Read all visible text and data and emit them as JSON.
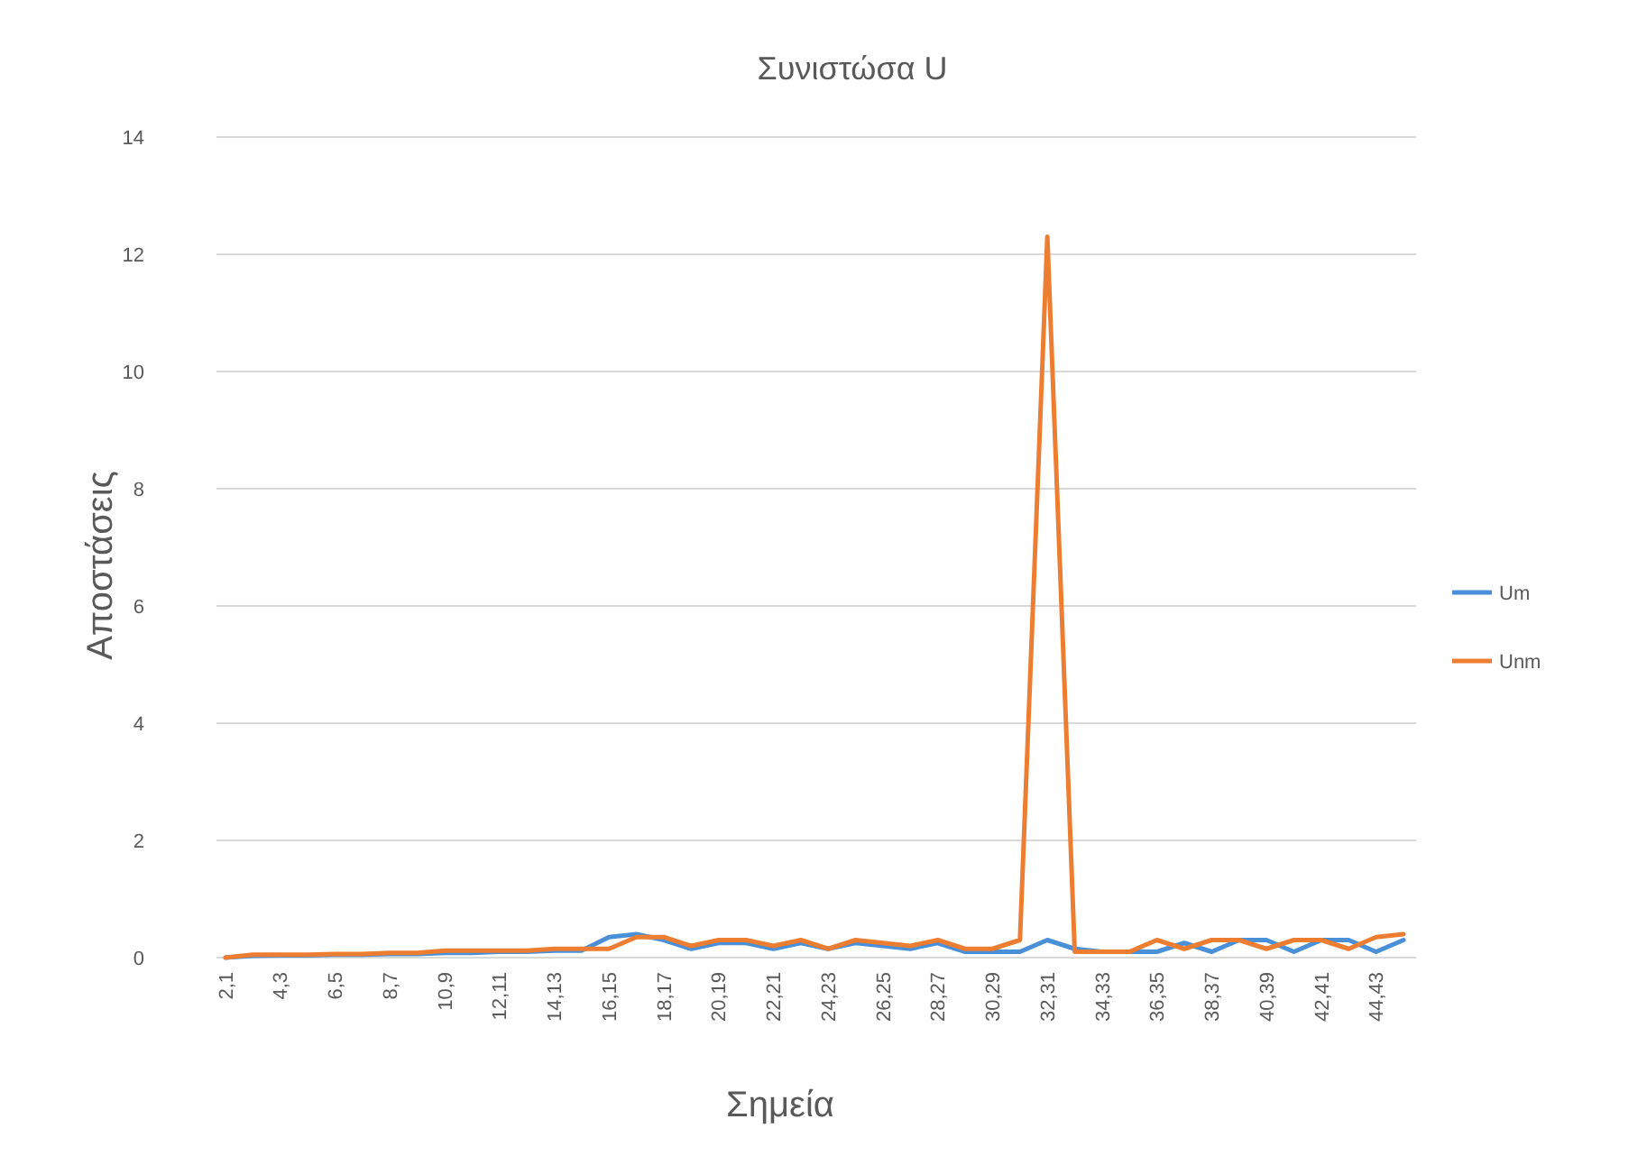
{
  "chart_data": {
    "type": "line",
    "title": "Συνιστώσα U",
    "xlabel": "Σημεία",
    "ylabel": "Αποστάσεις",
    "categories": [
      "2,1",
      null,
      "4,3",
      null,
      "6,5",
      null,
      "8,7",
      null,
      "10,9",
      null,
      "12,11",
      null,
      "14,13",
      null,
      "16,15",
      null,
      "18,17",
      null,
      "20,19",
      null,
      "22,21",
      null,
      "24,23",
      null,
      "26,25",
      null,
      "28,27",
      null,
      "30,29",
      null,
      "32,31",
      null,
      "34,33",
      null,
      "36,35",
      null,
      "38,37",
      null,
      "40,39",
      null,
      "42,41",
      null,
      "44,43",
      null
    ],
    "series": [
      {
        "name": "Um",
        "color": "#4a90d9",
        "values": [
          0,
          0.03,
          0.04,
          0.04,
          0.05,
          0.05,
          0.06,
          0.06,
          0.08,
          0.08,
          0.1,
          0.1,
          0.12,
          0.12,
          0.35,
          0.4,
          0.3,
          0.15,
          0.25,
          0.25,
          0.15,
          0.25,
          0.15,
          0.25,
          0.2,
          0.15,
          0.25,
          0.1,
          0.1,
          0.1,
          0.3,
          0.15,
          0.1,
          0.1,
          0.1,
          0.25,
          0.1,
          0.3,
          0.3,
          0.1,
          0.3,
          0.3,
          0.1,
          0.3
        ]
      },
      {
        "name": "Unm",
        "color": "#ed7d31",
        "values": [
          0,
          0.05,
          0.05,
          0.05,
          0.06,
          0.06,
          0.08,
          0.08,
          0.12,
          0.12,
          0.12,
          0.12,
          0.15,
          0.15,
          0.15,
          0.35,
          0.35,
          0.2,
          0.3,
          0.3,
          0.2,
          0.3,
          0.15,
          0.3,
          0.25,
          0.2,
          0.3,
          0.15,
          0.15,
          0.3,
          12.3,
          0.1,
          0.1,
          0.1,
          0.3,
          0.15,
          0.3,
          0.3,
          0.15,
          0.3,
          0.3,
          0.15,
          0.35,
          0.4
        ]
      }
    ],
    "ylim": [
      0,
      14
    ],
    "yticks": [
      0,
      2,
      4,
      6,
      8,
      10,
      12,
      14
    ],
    "grid": "y",
    "legend": "right",
    "marker": "none",
    "line_style": "solid"
  }
}
